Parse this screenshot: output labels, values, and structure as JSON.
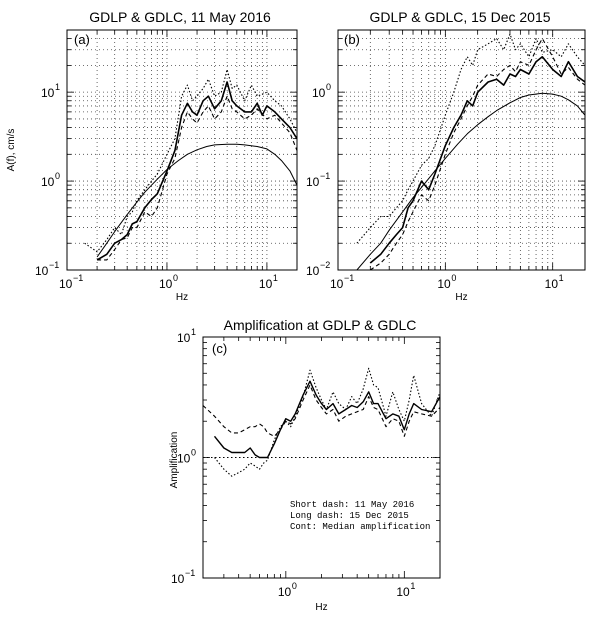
{
  "chart_data": [
    {
      "id": "a",
      "type": "line",
      "title": "GDLP & GDLC, 11 May 2016",
      "panel_label": "(a)",
      "xlabel": "Hz",
      "ylabel": "A(f), cm/s",
      "xscale": "log",
      "yscale": "log",
      "xlim": [
        0.1,
        20
      ],
      "ylim": [
        0.1,
        50
      ],
      "x_ticks": [
        {
          "b": "10",
          "e": "−1",
          "v": 0.1
        },
        {
          "b": "10",
          "e": "0",
          "v": 1
        },
        {
          "b": "10",
          "e": "1",
          "v": 10
        }
      ],
      "y_ticks": [
        {
          "b": "10",
          "e": "−1",
          "v": 0.1
        },
        {
          "b": "10",
          "e": "0",
          "v": 1
        },
        {
          "b": "10",
          "e": "1",
          "v": 10
        }
      ],
      "grid": true,
      "series": [
        {
          "style": "solid-thick",
          "x": [
            0.2,
            0.25,
            0.3,
            0.35,
            0.4,
            0.45,
            0.5,
            0.6,
            0.7,
            0.8,
            1.0,
            1.2,
            1.4,
            1.6,
            1.8,
            2.0,
            2.3,
            2.6,
            3.0,
            3.5,
            4.0,
            4.5,
            5,
            6,
            7,
            8,
            9,
            10,
            12,
            14,
            17,
            20
          ],
          "y": [
            0.13,
            0.15,
            0.2,
            0.22,
            0.25,
            0.33,
            0.35,
            0.5,
            0.62,
            0.72,
            1.3,
            2.2,
            5.5,
            7.5,
            6.0,
            5.5,
            8.0,
            9.0,
            6.5,
            8.0,
            13.0,
            8.0,
            7.0,
            6.0,
            6.0,
            7.5,
            5.5,
            7.0,
            6.0,
            5.0,
            4.0,
            3.0
          ]
        },
        {
          "style": "dotted",
          "x": [
            0.15,
            0.2,
            0.25,
            0.3,
            0.35,
            0.4,
            0.45,
            0.5,
            0.6,
            0.7,
            0.8,
            1.0,
            1.2,
            1.4,
            1.6,
            1.8,
            2.0,
            2.3,
            2.6,
            3.0,
            3.5,
            4.0,
            4.5,
            5,
            6,
            7,
            8,
            10,
            12,
            14,
            17,
            20
          ],
          "y": [
            0.2,
            0.16,
            0.22,
            0.3,
            0.25,
            0.4,
            0.45,
            0.6,
            0.8,
            1.0,
            1.2,
            2.0,
            3.0,
            9.0,
            12.0,
            8.0,
            9.0,
            11.0,
            14.0,
            9.0,
            10.0,
            18.0,
            11.0,
            12.0,
            8.0,
            12.0,
            9.0,
            10.0,
            8.0,
            7.0,
            5.0,
            3.5
          ]
        },
        {
          "style": "dashed",
          "x": [
            0.2,
            0.25,
            0.3,
            0.35,
            0.4,
            0.45,
            0.5,
            0.6,
            0.7,
            0.8,
            1.0,
            1.2,
            1.4,
            1.6,
            1.8,
            2.0,
            2.3,
            2.6,
            3.0,
            3.5,
            4.0,
            4.5,
            5,
            6,
            7,
            8,
            10,
            12,
            14,
            17,
            20
          ],
          "y": [
            0.13,
            0.13,
            0.17,
            0.22,
            0.23,
            0.3,
            0.3,
            0.45,
            0.4,
            0.5,
            1.2,
            1.8,
            4.0,
            6.0,
            5.0,
            4.5,
            6.0,
            7.0,
            5.0,
            6.0,
            9.0,
            6.5,
            6.0,
            5.0,
            5.5,
            6.5,
            5.0,
            5.5,
            4.5,
            3.5,
            2.2
          ]
        },
        {
          "style": "thin-smooth",
          "x": [
            0.2,
            0.25,
            0.3,
            0.4,
            0.5,
            0.6,
            0.8,
            1.0,
            1.3,
            1.6,
            2.0,
            2.5,
            3.0,
            4.0,
            5,
            6,
            8,
            10,
            12,
            14,
            17,
            20
          ],
          "y": [
            0.14,
            0.2,
            0.27,
            0.42,
            0.58,
            0.75,
            1.05,
            1.35,
            1.7,
            2.0,
            2.25,
            2.45,
            2.55,
            2.6,
            2.6,
            2.55,
            2.45,
            2.3,
            2.0,
            1.7,
            1.3,
            0.9
          ]
        }
      ]
    },
    {
      "id": "b",
      "type": "line",
      "title": "GDLP & GDLC, 15 Dec 2015",
      "panel_label": "(b)",
      "xlabel": "Hz",
      "ylabel": "",
      "xscale": "log",
      "yscale": "log",
      "xlim": [
        0.1,
        20
      ],
      "ylim": [
        0.01,
        5
      ],
      "x_ticks": [
        {
          "b": "10",
          "e": "−1",
          "v": 0.1
        },
        {
          "b": "10",
          "e": "0",
          "v": 1
        },
        {
          "b": "10",
          "e": "1",
          "v": 10
        }
      ],
      "y_ticks": [
        {
          "b": "10",
          "e": "−2",
          "v": 0.01
        },
        {
          "b": "10",
          "e": "−1",
          "v": 0.1
        },
        {
          "b": "10",
          "e": "0",
          "v": 1
        }
      ],
      "grid": true,
      "series": [
        {
          "style": "solid-thick",
          "x": [
            0.2,
            0.25,
            0.3,
            0.35,
            0.4,
            0.45,
            0.5,
            0.6,
            0.7,
            0.8,
            1.0,
            1.2,
            1.4,
            1.6,
            1.8,
            2.0,
            2.5,
            3.0,
            3.5,
            4.0,
            4.5,
            5,
            6,
            7,
            8,
            10,
            12,
            14,
            17,
            20
          ],
          "y": [
            0.012,
            0.015,
            0.02,
            0.025,
            0.03,
            0.05,
            0.06,
            0.1,
            0.08,
            0.12,
            0.25,
            0.4,
            0.55,
            0.8,
            0.7,
            1.0,
            1.3,
            1.4,
            1.2,
            1.6,
            1.5,
            1.8,
            1.6,
            2.2,
            2.5,
            1.8,
            1.5,
            2.2,
            1.5,
            1.3
          ]
        },
        {
          "style": "dotted",
          "x": [
            0.15,
            0.2,
            0.25,
            0.3,
            0.35,
            0.4,
            0.45,
            0.5,
            0.6,
            0.7,
            0.8,
            1.0,
            1.2,
            1.4,
            1.6,
            1.8,
            2.0,
            2.5,
            3.0,
            3.5,
            4.0,
            4.5,
            5,
            6,
            7,
            8,
            10,
            12,
            14,
            17,
            20
          ],
          "y": [
            0.02,
            0.03,
            0.04,
            0.04,
            0.05,
            0.06,
            0.08,
            0.1,
            0.15,
            0.18,
            0.25,
            0.55,
            1.0,
            1.8,
            2.5,
            2.0,
            3.0,
            3.5,
            4.0,
            3.0,
            4.5,
            3.0,
            3.5,
            2.5,
            4.0,
            2.8,
            3.0,
            2.5,
            3.5,
            2.5,
            2.0
          ]
        },
        {
          "style": "dashed",
          "x": [
            0.2,
            0.25,
            0.3,
            0.35,
            0.4,
            0.45,
            0.5,
            0.6,
            0.7,
            0.8,
            1.0,
            1.2,
            1.4,
            1.6,
            1.8,
            2.0,
            2.5,
            3.0,
            3.5,
            4.0,
            4.5,
            5,
            6,
            7,
            8,
            10,
            12,
            14,
            17,
            20
          ],
          "y": [
            0.01,
            0.012,
            0.015,
            0.02,
            0.025,
            0.035,
            0.045,
            0.07,
            0.06,
            0.09,
            0.2,
            0.35,
            0.5,
            0.7,
            0.9,
            1.2,
            1.6,
            1.5,
            1.8,
            2.0,
            1.7,
            2.2,
            2.0,
            3.0,
            4.0,
            2.5,
            1.6,
            1.9,
            1.4,
            1.2
          ]
        },
        {
          "style": "thin-smooth",
          "x": [
            0.15,
            0.2,
            0.25,
            0.3,
            0.4,
            0.5,
            0.6,
            0.8,
            1.0,
            1.3,
            1.6,
            2.0,
            2.5,
            3.0,
            4.0,
            5,
            6,
            8,
            10,
            12,
            14,
            17,
            20
          ],
          "y": [
            0.01,
            0.015,
            0.02,
            0.028,
            0.045,
            0.065,
            0.085,
            0.13,
            0.18,
            0.26,
            0.34,
            0.43,
            0.53,
            0.62,
            0.76,
            0.87,
            0.93,
            0.97,
            0.95,
            0.9,
            0.82,
            0.7,
            0.55
          ]
        }
      ]
    },
    {
      "id": "c",
      "type": "line",
      "title": "Amplification at GDLP & GDLC",
      "panel_label": "(c)",
      "xlabel": "Hz",
      "ylabel": "Amplification",
      "xscale": "log",
      "yscale": "log",
      "xlim": [
        0.2,
        20
      ],
      "ylim": [
        0.1,
        10
      ],
      "x_ticks": [
        {
          "b": "10",
          "e": "0",
          "v": 1
        },
        {
          "b": "10",
          "e": "1",
          "v": 10
        }
      ],
      "y_ticks": [
        {
          "b": "10",
          "e": "−1",
          "v": 0.1
        },
        {
          "b": "10",
          "e": "0",
          "v": 1
        },
        {
          "b": "10",
          "e": "1",
          "v": 10
        }
      ],
      "grid": false,
      "reference_line": 1,
      "legend": [
        "Short dash: 11 May 2016",
        "Long  dash: 15 Dec 2015",
        "Cont: Median amplification"
      ],
      "series": [
        {
          "style": "solid",
          "x": [
            0.25,
            0.3,
            0.35,
            0.4,
            0.45,
            0.5,
            0.55,
            0.6,
            0.65,
            0.7,
            0.8,
            0.9,
            1.0,
            1.1,
            1.2,
            1.4,
            1.6,
            1.8,
            2.0,
            2.2,
            2.5,
            2.8,
            3.2,
            3.6,
            4.0,
            4.5,
            5,
            5.5,
            6,
            7,
            8,
            9,
            10,
            11,
            12,
            14,
            17,
            20
          ],
          "y": [
            1.5,
            1.2,
            1.1,
            1.1,
            1.1,
            1.2,
            1.05,
            1.0,
            1.0,
            1.0,
            1.3,
            1.7,
            2.1,
            2.0,
            2.3,
            3.3,
            4.3,
            3.3,
            2.8,
            2.5,
            2.8,
            2.3,
            2.5,
            2.7,
            2.6,
            2.9,
            3.5,
            2.8,
            2.8,
            2.1,
            2.3,
            2.2,
            1.7,
            2.3,
            2.8,
            2.5,
            2.4,
            3.2
          ]
        },
        {
          "style": "dotted",
          "x": [
            0.25,
            0.3,
            0.35,
            0.4,
            0.45,
            0.5,
            0.55,
            0.6,
            0.65,
            0.7,
            0.8,
            0.9,
            1.0,
            1.1,
            1.2,
            1.4,
            1.6,
            1.8,
            2.0,
            2.2,
            2.5,
            2.8,
            3.2,
            3.6,
            4.0,
            4.5,
            5,
            5.5,
            6,
            7,
            8,
            9,
            10,
            11,
            12,
            14,
            17,
            20
          ],
          "y": [
            1.0,
            0.8,
            0.7,
            0.75,
            0.8,
            0.9,
            0.85,
            0.8,
            0.9,
            0.95,
            1.4,
            1.8,
            2.0,
            1.8,
            2.2,
            3.2,
            5.3,
            3.8,
            3.0,
            2.5,
            3.5,
            2.8,
            2.5,
            3.2,
            2.8,
            3.7,
            5.5,
            4.0,
            3.8,
            2.2,
            3.5,
            2.5,
            2.0,
            3.0,
            4.8,
            2.8,
            2.2,
            3.5
          ]
        },
        {
          "style": "dashed",
          "x": [
            0.2,
            0.25,
            0.3,
            0.35,
            0.4,
            0.45,
            0.5,
            0.55,
            0.6,
            0.65,
            0.7,
            0.8,
            0.9,
            1.0,
            1.1,
            1.2,
            1.4,
            1.6,
            1.8,
            2.0,
            2.2,
            2.5,
            2.8,
            3.2,
            3.6,
            4.0,
            4.5,
            5,
            5.5,
            6,
            7,
            8,
            9,
            10,
            11,
            12,
            14,
            17,
            20
          ],
          "y": [
            2.7,
            2.2,
            1.8,
            1.6,
            1.6,
            1.7,
            1.8,
            1.8,
            1.9,
            1.8,
            1.6,
            1.5,
            1.7,
            2.0,
            1.9,
            2.1,
            3.0,
            4.0,
            3.0,
            2.6,
            2.3,
            2.5,
            2.0,
            2.2,
            2.3,
            2.4,
            2.5,
            3.2,
            2.6,
            2.5,
            1.8,
            2.1,
            2.0,
            1.5,
            2.0,
            2.4,
            2.3,
            2.2,
            2.6
          ]
        }
      ]
    }
  ]
}
